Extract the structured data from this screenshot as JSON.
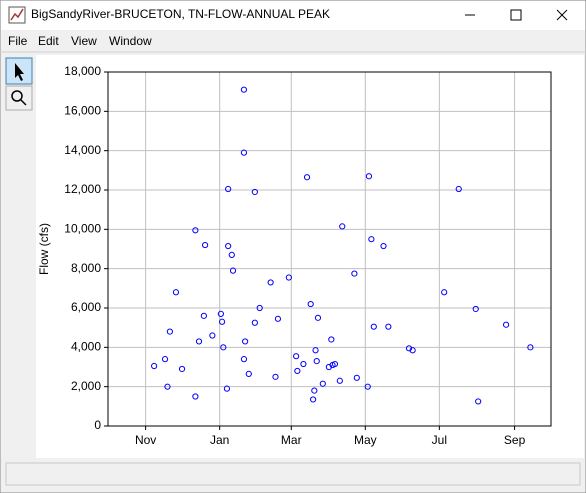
{
  "window": {
    "title": "BigSandyRiver-BRUCETON, TN-FLOW-ANNUAL PEAK",
    "menu": [
      "File",
      "Edit",
      "View",
      "Window"
    ]
  },
  "chart_data": {
    "type": "scatter",
    "y_label": "Flow (cfs)",
    "x": [
      38,
      47,
      49,
      51,
      56,
      61,
      72,
      72,
      75,
      79,
      80,
      86,
      93,
      94,
      95,
      98,
      99,
      99,
      102,
      103,
      112,
      112,
      112,
      113,
      116,
      121,
      121,
      125,
      134,
      138,
      140,
      149,
      155,
      156,
      161,
      164,
      167,
      169,
      170,
      171,
      172,
      173,
      177,
      182,
      184,
      185,
      187,
      191,
      193,
      203,
      205,
      214,
      215,
      217,
      219,
      227,
      231,
      248,
      251,
      277,
      289,
      303,
      305,
      328,
      348
    ],
    "values": [
      3050,
      3400,
      2000,
      4800,
      6800,
      2900,
      9950,
      1500,
      4300,
      5600,
      9200,
      4600,
      5700,
      5300,
      4000,
      1900,
      12050,
      9150,
      8700,
      7900,
      17100,
      13900,
      3400,
      4300,
      2650,
      11900,
      5250,
      6000,
      7300,
      2500,
      5450,
      7550,
      3550,
      2800,
      3150,
      12650,
      6200,
      1350,
      1800,
      3850,
      3300,
      5500,
      2150,
      3000,
      4400,
      3100,
      3150,
      2300,
      10150,
      7750,
      2450,
      2000,
      12700,
      9500,
      5050,
      9150,
      5050,
      3950,
      3850,
      6800,
      12050,
      5950,
      1250,
      5150,
      4000
    ],
    "color": "#0000ff",
    "xlim": [
      0,
      365
    ],
    "xticks": [
      {
        "value": 31,
        "label": "Nov"
      },
      {
        "value": 92,
        "label": "Jan"
      },
      {
        "value": 151,
        "label": "Mar"
      },
      {
        "value": 212,
        "label": "May"
      },
      {
        "value": 273,
        "label": "Jul"
      },
      {
        "value": 335,
        "label": "Sep"
      }
    ],
    "ylim": [
      0,
      18000
    ],
    "yticks": [
      0,
      {
        "value": 2000,
        "label": "2,000"
      },
      {
        "value": 4000,
        "label": "4,000"
      },
      {
        "value": 6000,
        "label": "6,000"
      },
      {
        "value": 8000,
        "label": "8,000"
      },
      {
        "value": 10000,
        "label": "10,000"
      },
      {
        "value": 12000,
        "label": "12,000"
      },
      {
        "value": 14000,
        "label": "14,000"
      },
      {
        "value": 16000,
        "label": "16,000"
      },
      {
        "value": 18000,
        "label": "18,000"
      }
    ],
    "grid": true
  }
}
